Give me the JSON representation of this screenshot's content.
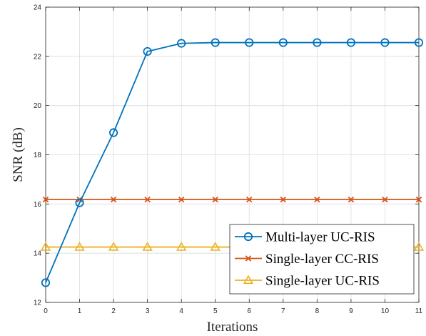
{
  "chart_data": {
    "type": "line",
    "title": "",
    "xlabel": "Iterations",
    "ylabel": "SNR (dB)",
    "xlim": [
      0,
      11
    ],
    "ylim": [
      12,
      24
    ],
    "xticks": [
      "0",
      "1",
      "2",
      "3",
      "4",
      "5",
      "6",
      "7",
      "8",
      "9",
      "10",
      "11"
    ],
    "yticks": [
      "12",
      "14",
      "16",
      "18",
      "20",
      "22",
      "24"
    ],
    "grid": true,
    "legend_position": "bottom-right",
    "x": [
      0,
      1,
      2,
      3,
      4,
      5,
      6,
      7,
      8,
      9,
      10,
      11
    ],
    "series": [
      {
        "name": "Multi-layer UC-RIS",
        "color": "#0072BD",
        "marker": "circle",
        "values": [
          12.8,
          16.05,
          18.9,
          22.2,
          22.53,
          22.56,
          22.56,
          22.56,
          22.56,
          22.56,
          22.56,
          22.56
        ]
      },
      {
        "name": "Single-layer CC-RIS",
        "color": "#D95319",
        "marker": "x",
        "values": [
          16.18,
          16.18,
          16.18,
          16.18,
          16.18,
          16.18,
          16.18,
          16.18,
          16.18,
          16.18,
          16.18,
          16.18
        ]
      },
      {
        "name": "Single-layer UC-RIS",
        "color": "#EDB120",
        "marker": "triangle",
        "values": [
          14.25,
          14.25,
          14.25,
          14.25,
          14.25,
          14.25,
          14.25,
          14.25,
          14.25,
          14.25,
          14.25,
          14.25
        ]
      }
    ]
  }
}
